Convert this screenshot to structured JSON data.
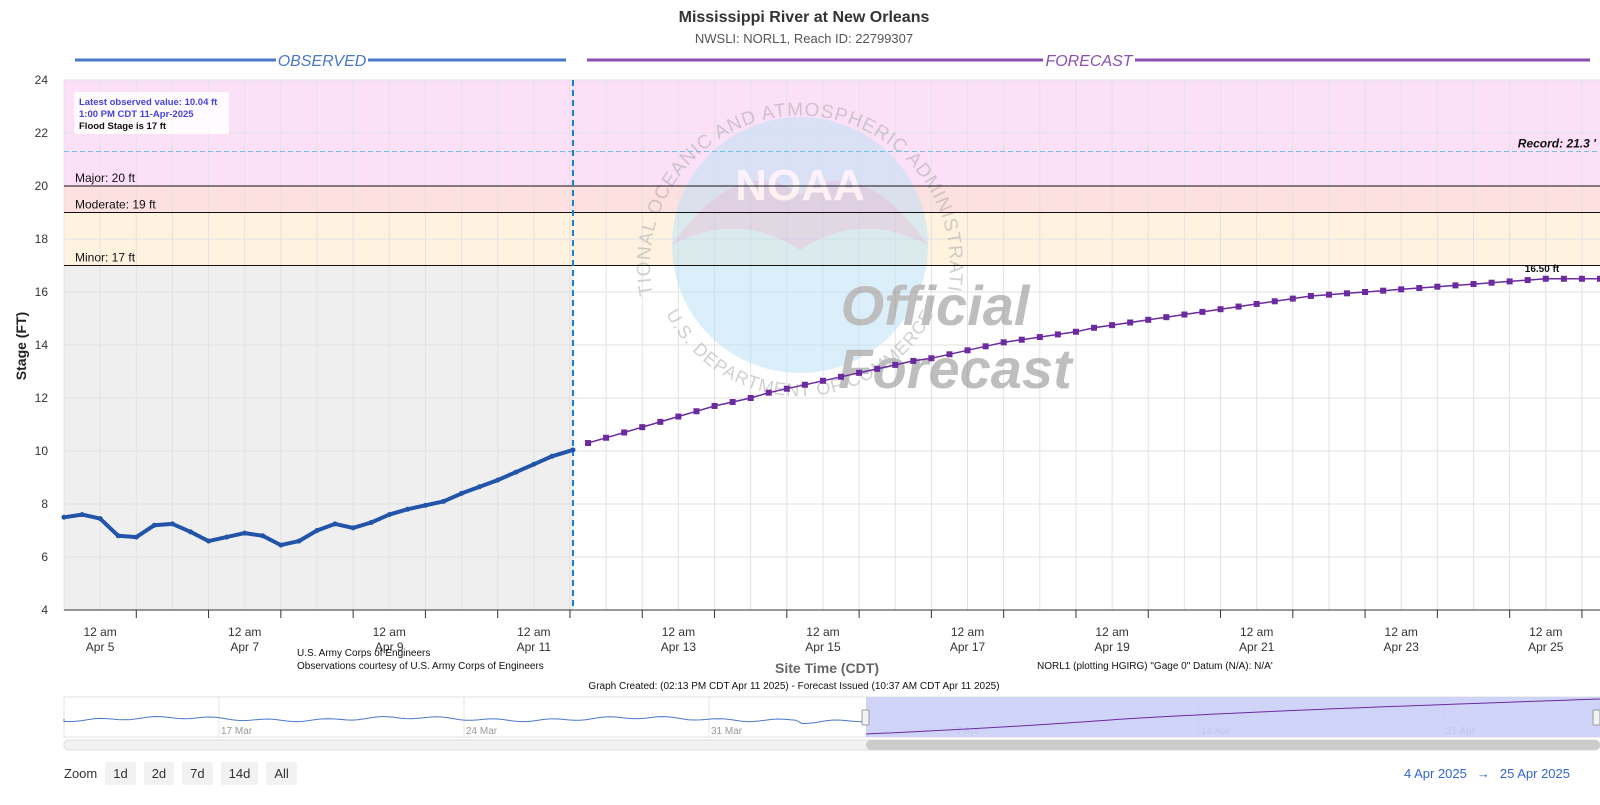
{
  "header": {
    "title": "Mississippi River at New Orleans",
    "subtitle": "NWSLI: NORL1, Reach ID: 22799307"
  },
  "bands": {
    "observed": "OBSERVED",
    "forecast": "FORECAST"
  },
  "info_box": {
    "line1": "Latest observed value: 10.04 ft",
    "line2": "1:00 PM CDT 11-Apr-2025",
    "line3": "Flood Stage is 17 ft"
  },
  "watermark": {
    "arc_top": "NATIONAL OCEANIC AND ATMOSPHERIC ADMINISTRATION",
    "arc_bottom": "U.S. DEPARTMENT OF COMMERCE",
    "logo": "NOAA",
    "official": "Official",
    "forecast": "Forecast"
  },
  "footer": {
    "usace": "U.S. Army Corps of Engineers",
    "obs_courtesy": "Observations courtesy of U.S. Army Corps of Engineers",
    "datum": "NORL1 (plotting HGIRG) \"Gage 0\" Datum (N/A): N/A'",
    "created": "Graph Created: (02:13 PM CDT Apr 11 2025) - Forecast Issued (10:37 AM CDT Apr 11 2025)"
  },
  "navigator": {
    "labels": [
      "17 Mar",
      "24 Mar",
      "31 Mar",
      "7 Apr",
      "14 Apr",
      "21 Apr"
    ]
  },
  "zoom": {
    "label": "Zoom",
    "buttons": [
      "1d",
      "2d",
      "7d",
      "14d",
      "All"
    ]
  },
  "range": {
    "from": "4 Apr 2025",
    "arrow": "→",
    "to": "25 Apr 2025"
  },
  "colors": {
    "observed": "#2255aa",
    "forecast": "#6b2aa0",
    "major": "#fce0f8",
    "moderate": "#fde0e0",
    "minor": "#fff3e0",
    "observed_bg": "#efefef",
    "navigator_mask": "#c8ccf8"
  },
  "chart_data": {
    "type": "line",
    "title": "Mississippi River at New Orleans",
    "subtitle": "NWSLI: NORL1, Reach ID: 22799307",
    "xlabel": "Site Time (CDT)",
    "ylabel": "Stage (FT)",
    "x_range": [
      "2025-04-04T12:00",
      "2025-04-25T18:00"
    ],
    "ylim": [
      4,
      24
    ],
    "y_ticks": [
      "4",
      "6",
      "8",
      "10",
      "12",
      "14",
      "16",
      "18",
      "20",
      "22",
      "24"
    ],
    "x_ticks": [
      {
        "at": "2025-04-05T00:00",
        "time": "12 am",
        "date": "Apr 5"
      },
      {
        "at": "2025-04-07T00:00",
        "time": "12 am",
        "date": "Apr 7"
      },
      {
        "at": "2025-04-09T00:00",
        "time": "12 am",
        "date": "Apr 9"
      },
      {
        "at": "2025-04-11T00:00",
        "time": "12 am",
        "date": "Apr 11"
      },
      {
        "at": "2025-04-13T00:00",
        "time": "12 am",
        "date": "Apr 13"
      },
      {
        "at": "2025-04-15T00:00",
        "time": "12 am",
        "date": "Apr 15"
      },
      {
        "at": "2025-04-17T00:00",
        "time": "12 am",
        "date": "Apr 17"
      },
      {
        "at": "2025-04-19T00:00",
        "time": "12 am",
        "date": "Apr 19"
      },
      {
        "at": "2025-04-21T00:00",
        "time": "12 am",
        "date": "Apr 21"
      },
      {
        "at": "2025-04-23T00:00",
        "time": "12 am",
        "date": "Apr 23"
      },
      {
        "at": "2025-04-25T00:00",
        "time": "12 am",
        "date": "Apr 25"
      }
    ],
    "grid": true,
    "legend": "none",
    "thresholds": [
      {
        "name": "Major",
        "value": 20,
        "label": "Major: 20 ft"
      },
      {
        "name": "Moderate",
        "value": 19,
        "label": "Moderate: 19 ft"
      },
      {
        "name": "Minor",
        "value": 17,
        "label": "Minor: 17 ft"
      }
    ],
    "record": {
      "value": 21.3,
      "label": "Record: 21.3 '"
    },
    "forecast_start": "2025-04-11T13:00",
    "peak_label": "16.50 ft",
    "observed": {
      "x": [
        "2025-04-04T12:00",
        "2025-04-04T18:00",
        "2025-04-05T00:00",
        "2025-04-05T06:00",
        "2025-04-05T12:00",
        "2025-04-05T18:00",
        "2025-04-06T00:00",
        "2025-04-06T06:00",
        "2025-04-06T12:00",
        "2025-04-06T18:00",
        "2025-04-07T00:00",
        "2025-04-07T06:00",
        "2025-04-07T12:00",
        "2025-04-07T18:00",
        "2025-04-08T00:00",
        "2025-04-08T06:00",
        "2025-04-08T12:00",
        "2025-04-08T18:00",
        "2025-04-09T00:00",
        "2025-04-09T06:00",
        "2025-04-09T12:00",
        "2025-04-09T18:00",
        "2025-04-10T00:00",
        "2025-04-10T06:00",
        "2025-04-10T12:00",
        "2025-04-10T18:00",
        "2025-04-11T00:00",
        "2025-04-11T06:00",
        "2025-04-11T13:00"
      ],
      "values": [
        7.5,
        7.6,
        7.45,
        6.8,
        6.75,
        7.2,
        7.25,
        6.95,
        6.6,
        6.75,
        6.9,
        6.8,
        6.45,
        6.6,
        7.0,
        7.25,
        7.1,
        7.3,
        7.6,
        7.8,
        7.95,
        8.1,
        8.4,
        8.65,
        8.9,
        9.2,
        9.5,
        9.8,
        10.04
      ]
    },
    "forecast": {
      "x": [
        "2025-04-11T18:00",
        "2025-04-12T00:00",
        "2025-04-12T06:00",
        "2025-04-12T12:00",
        "2025-04-12T18:00",
        "2025-04-13T00:00",
        "2025-04-13T06:00",
        "2025-04-13T12:00",
        "2025-04-13T18:00",
        "2025-04-14T00:00",
        "2025-04-14T06:00",
        "2025-04-14T12:00",
        "2025-04-14T18:00",
        "2025-04-15T00:00",
        "2025-04-15T06:00",
        "2025-04-15T12:00",
        "2025-04-15T18:00",
        "2025-04-16T00:00",
        "2025-04-16T06:00",
        "2025-04-16T12:00",
        "2025-04-16T18:00",
        "2025-04-17T00:00",
        "2025-04-17T06:00",
        "2025-04-17T12:00",
        "2025-04-17T18:00",
        "2025-04-18T00:00",
        "2025-04-18T06:00",
        "2025-04-18T12:00",
        "2025-04-18T18:00",
        "2025-04-19T00:00",
        "2025-04-19T06:00",
        "2025-04-19T12:00",
        "2025-04-19T18:00",
        "2025-04-20T00:00",
        "2025-04-20T06:00",
        "2025-04-20T12:00",
        "2025-04-20T18:00",
        "2025-04-21T00:00",
        "2025-04-21T06:00",
        "2025-04-21T12:00",
        "2025-04-21T18:00",
        "2025-04-22T00:00",
        "2025-04-22T06:00",
        "2025-04-22T12:00",
        "2025-04-22T18:00",
        "2025-04-23T00:00",
        "2025-04-23T06:00",
        "2025-04-23T12:00",
        "2025-04-23T18:00",
        "2025-04-24T00:00",
        "2025-04-24T06:00",
        "2025-04-24T12:00",
        "2025-04-24T18:00",
        "2025-04-25T00:00",
        "2025-04-25T06:00",
        "2025-04-25T12:00",
        "2025-04-25T18:00"
      ],
      "values": [
        10.3,
        10.5,
        10.7,
        10.9,
        11.1,
        11.3,
        11.5,
        11.7,
        11.85,
        12.0,
        12.2,
        12.35,
        12.5,
        12.65,
        12.8,
        12.95,
        13.1,
        13.25,
        13.4,
        13.5,
        13.65,
        13.8,
        13.95,
        14.1,
        14.2,
        14.3,
        14.4,
        14.5,
        14.65,
        14.75,
        14.85,
        14.95,
        15.05,
        15.15,
        15.25,
        15.35,
        15.45,
        15.55,
        15.65,
        15.75,
        15.85,
        15.9,
        15.95,
        16.0,
        16.05,
        16.1,
        16.15,
        16.2,
        16.25,
        16.3,
        16.35,
        16.4,
        16.45,
        16.5,
        16.5,
        16.5,
        16.5
      ]
    }
  }
}
